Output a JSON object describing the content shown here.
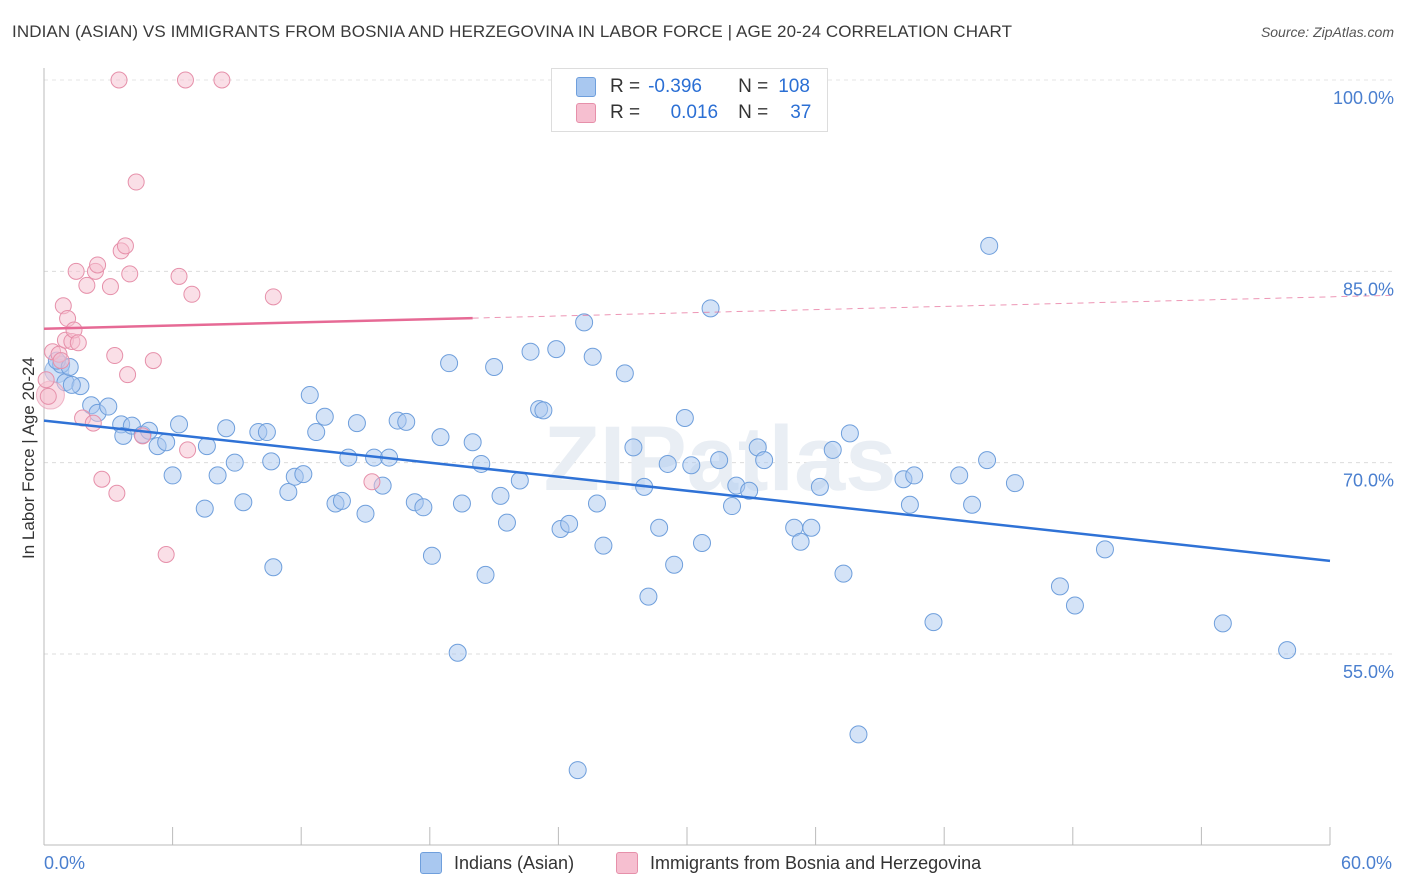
{
  "title": "INDIAN (ASIAN) VS IMMIGRANTS FROM BOSNIA AND HERZEGOVINA IN LABOR FORCE | AGE 20-24 CORRELATION CHART",
  "source": "Source: ZipAtlas.com",
  "watermark": "ZIPatlas",
  "colors": {
    "blue_fill": "#a9c8f0",
    "blue_stroke": "#6f9fdc",
    "blue_line": "#2f72d6",
    "pink_fill": "#f6bfd0",
    "pink_stroke": "#e690aa",
    "pink_line": "#e66a95",
    "tick_label": "#4a7fcf"
  },
  "legend": {
    "row1": {
      "r_label": "R =",
      "r_value": "-0.396",
      "n_label": "N =",
      "n_value": "108"
    },
    "row2": {
      "r_label": "R =",
      "r_value": "0.016",
      "n_label": "N =",
      "n_value": "37"
    }
  },
  "bottom_legend": {
    "series1": "Indians (Asian)",
    "series2": "Immigrants from Bosnia and Herzegovina"
  },
  "chart_data": {
    "type": "scatter",
    "title": "INDIAN (ASIAN) VS IMMIGRANTS FROM BOSNIA AND HERZEGOVINA IN LABOR FORCE | AGE 20-24 CORRELATION CHART",
    "xlabel": "",
    "ylabel": "In Labor Force | Age 20-24",
    "xlim": [
      0,
      60
    ],
    "ylim": [
      40,
      102
    ],
    "x_tick_labels": [
      "0.0%",
      "60.0%"
    ],
    "y_ticks": [
      55,
      70,
      85,
      100
    ],
    "y_tick_labels": [
      "55.0%",
      "70.0%",
      "85.0%",
      "100.0%"
    ],
    "grid": true,
    "legend_position": "top-center",
    "series": [
      {
        "name": "Indians (Asian)",
        "color": "#6f9fdc",
        "trend": {
          "x": [
            0,
            60
          ],
          "y": [
            73.3,
            62.3
          ],
          "style": "solid"
        },
        "points": [
          [
            0.8,
            77.7
          ],
          [
            0.6,
            78.0
          ],
          [
            1.0,
            76.3
          ],
          [
            1.7,
            76.0
          ],
          [
            1.2,
            77.5
          ],
          [
            2.2,
            74.5
          ],
          [
            2.5,
            73.9
          ],
          [
            3.0,
            74.4
          ],
          [
            3.6,
            73.0
          ],
          [
            3.7,
            72.1
          ],
          [
            4.1,
            72.9
          ],
          [
            4.6,
            72.2
          ],
          [
            4.9,
            72.5
          ],
          [
            5.3,
            71.3
          ],
          [
            5.7,
            71.6
          ],
          [
            6.3,
            73.0
          ],
          [
            6.0,
            69.0
          ],
          [
            7.6,
            71.3
          ],
          [
            7.5,
            66.4
          ],
          [
            8.1,
            69.0
          ],
          [
            8.5,
            72.7
          ],
          [
            8.9,
            70.0
          ],
          [
            9.3,
            66.9
          ],
          [
            10.0,
            72.4
          ],
          [
            10.6,
            70.1
          ],
          [
            10.4,
            72.4
          ],
          [
            10.7,
            61.8
          ],
          [
            11.4,
            67.7
          ],
          [
            11.7,
            68.9
          ],
          [
            12.1,
            69.1
          ],
          [
            12.4,
            75.3
          ],
          [
            12.7,
            72.4
          ],
          [
            13.1,
            73.6
          ],
          [
            13.6,
            66.8
          ],
          [
            13.9,
            67.0
          ],
          [
            14.2,
            70.4
          ],
          [
            14.6,
            73.1
          ],
          [
            15.0,
            66.0
          ],
          [
            15.4,
            70.4
          ],
          [
            15.8,
            68.2
          ],
          [
            16.1,
            70.4
          ],
          [
            16.5,
            73.3
          ],
          [
            16.9,
            73.2
          ],
          [
            17.3,
            66.9
          ],
          [
            17.7,
            66.5
          ],
          [
            18.1,
            62.7
          ],
          [
            18.5,
            72.0
          ],
          [
            18.9,
            77.8
          ],
          [
            19.3,
            55.1
          ],
          [
            19.5,
            66.8
          ],
          [
            20.0,
            71.6
          ],
          [
            20.4,
            69.9
          ],
          [
            20.6,
            61.2
          ],
          [
            21.0,
            77.5
          ],
          [
            21.3,
            67.4
          ],
          [
            21.6,
            65.3
          ],
          [
            22.2,
            68.6
          ],
          [
            22.7,
            78.7
          ],
          [
            23.1,
            74.2
          ],
          [
            23.3,
            74.1
          ],
          [
            23.9,
            78.9
          ],
          [
            24.1,
            64.8
          ],
          [
            24.5,
            65.2
          ],
          [
            24.9,
            45.9
          ],
          [
            25.2,
            81.0
          ],
          [
            25.6,
            78.3
          ],
          [
            25.8,
            66.8
          ],
          [
            26.1,
            63.5
          ],
          [
            27.1,
            77.0
          ],
          [
            27.5,
            71.2
          ],
          [
            28.0,
            68.1
          ],
          [
            28.2,
            59.5
          ],
          [
            28.7,
            64.9
          ],
          [
            29.1,
            69.9
          ],
          [
            29.4,
            62.0
          ],
          [
            29.9,
            73.5
          ],
          [
            30.2,
            69.8
          ],
          [
            30.7,
            63.7
          ],
          [
            31.1,
            82.1
          ],
          [
            31.5,
            70.2
          ],
          [
            32.1,
            66.6
          ],
          [
            32.3,
            68.2
          ],
          [
            32.9,
            67.8
          ],
          [
            33.3,
            71.2
          ],
          [
            33.6,
            70.2
          ],
          [
            35.0,
            64.9
          ],
          [
            35.3,
            63.8
          ],
          [
            35.8,
            64.9
          ],
          [
            36.2,
            68.1
          ],
          [
            36.8,
            71.0
          ],
          [
            37.3,
            61.3
          ],
          [
            37.6,
            72.3
          ],
          [
            38.0,
            48.7
          ],
          [
            40.1,
            68.7
          ],
          [
            40.6,
            69.0
          ],
          [
            40.4,
            66.7
          ],
          [
            41.5,
            57.5
          ],
          [
            42.7,
            69.0
          ],
          [
            43.3,
            66.7
          ],
          [
            44.0,
            70.2
          ],
          [
            44.1,
            87.0
          ],
          [
            45.3,
            68.4
          ],
          [
            47.4,
            60.3
          ],
          [
            48.1,
            58.8
          ],
          [
            49.5,
            63.2
          ],
          [
            55.0,
            57.4
          ],
          [
            58.0,
            55.3
          ],
          [
            1.3,
            76.1
          ]
        ]
      },
      {
        "name": "Immigrants from Bosnia and Herzegovina",
        "color": "#e690aa",
        "trend": {
          "x": [
            0,
            60
          ],
          "y": [
            80.5,
            83.0
          ],
          "style": "solid_to_20_then_dashed"
        },
        "points": [
          [
            0.1,
            76.5
          ],
          [
            0.2,
            75.2
          ],
          [
            0.4,
            78.7
          ],
          [
            0.7,
            78.5
          ],
          [
            0.8,
            78.0
          ],
          [
            0.9,
            82.3
          ],
          [
            1.0,
            79.6
          ],
          [
            1.1,
            81.3
          ],
          [
            1.3,
            79.5
          ],
          [
            1.4,
            80.4
          ],
          [
            1.5,
            85.0
          ],
          [
            1.6,
            79.4
          ],
          [
            1.8,
            73.5
          ],
          [
            2.0,
            83.9
          ],
          [
            2.3,
            73.1
          ],
          [
            2.4,
            85.0
          ],
          [
            2.5,
            85.5
          ],
          [
            2.7,
            68.7
          ],
          [
            3.1,
            83.8
          ],
          [
            3.3,
            78.4
          ],
          [
            3.4,
            67.6
          ],
          [
            3.5,
            100.0
          ],
          [
            3.6,
            86.6
          ],
          [
            3.8,
            87.0
          ],
          [
            3.9,
            76.9
          ],
          [
            4.0,
            84.8
          ],
          [
            4.3,
            92.0
          ],
          [
            4.6,
            72.1
          ],
          [
            5.1,
            78.0
          ],
          [
            5.7,
            62.8
          ],
          [
            6.3,
            84.6
          ],
          [
            6.6,
            100.0
          ],
          [
            6.7,
            71.0
          ],
          [
            6.9,
            83.2
          ],
          [
            8.3,
            100.0
          ],
          [
            10.7,
            83.0
          ],
          [
            15.3,
            68.5
          ]
        ]
      }
    ]
  }
}
